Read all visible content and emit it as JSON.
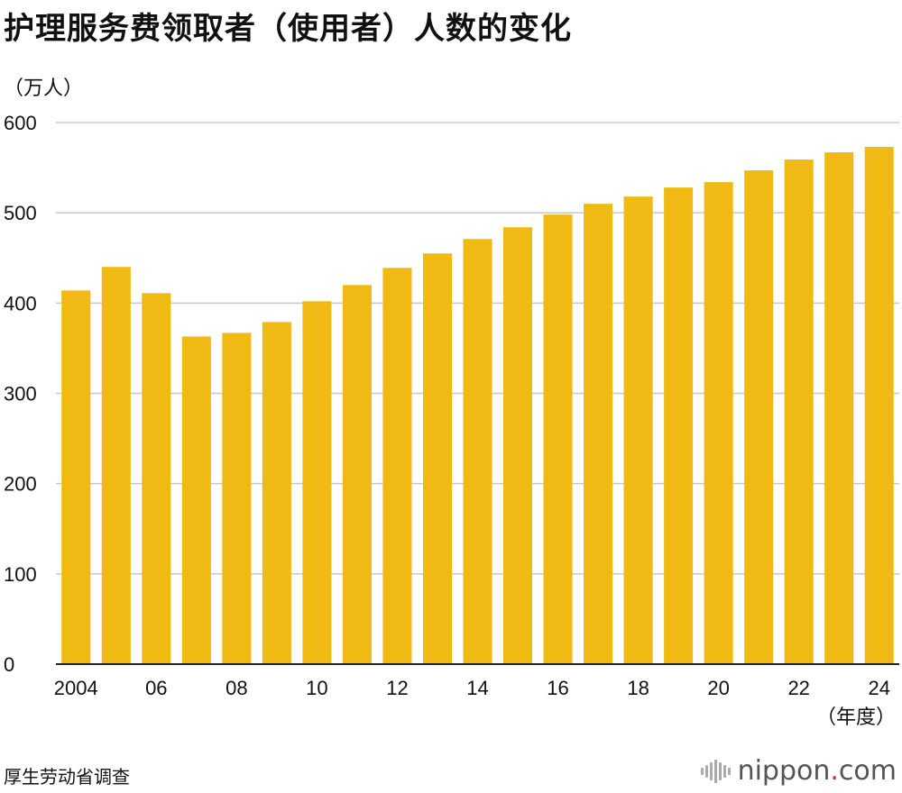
{
  "header": {
    "title": "护理服务费领取者（使用者）人数的变化",
    "unit": "（万人）"
  },
  "footer": {
    "source": "厚生劳动省调查",
    "brand_prefix": "nippon",
    "brand_dot": ".",
    "brand_suffix": "com"
  },
  "colors": {
    "bar": "#F0B914",
    "grid": "#c8c8c8",
    "axis": "#222222",
    "brand_dot": "#c0392b"
  },
  "chart_data": {
    "type": "bar",
    "categories": [
      "2004",
      "2005",
      "2006",
      "2007",
      "2008",
      "2009",
      "2010",
      "2011",
      "2012",
      "2013",
      "2014",
      "2015",
      "2016",
      "2017",
      "2018",
      "2019",
      "2020",
      "2021",
      "2022",
      "2023",
      "2024"
    ],
    "values": [
      414,
      440,
      411,
      363,
      367,
      379,
      402,
      420,
      439,
      455,
      471,
      484,
      498,
      510,
      518,
      528,
      534,
      547,
      559,
      567,
      573
    ],
    "x_tick_labels": [
      {
        "index": 0,
        "label": "2004"
      },
      {
        "index": 2,
        "label": "06"
      },
      {
        "index": 4,
        "label": "08"
      },
      {
        "index": 6,
        "label": "10"
      },
      {
        "index": 8,
        "label": "12"
      },
      {
        "index": 10,
        "label": "14"
      },
      {
        "index": 12,
        "label": "16"
      },
      {
        "index": 14,
        "label": "18"
      },
      {
        "index": 16,
        "label": "20"
      },
      {
        "index": 18,
        "label": "22"
      },
      {
        "index": 20,
        "label": "24"
      }
    ],
    "y_ticks": [
      0,
      100,
      200,
      300,
      400,
      500,
      600
    ],
    "ylim": [
      0,
      600
    ],
    "xlabel": "（年度）",
    "ylabel": "（万人）",
    "grid": true
  }
}
